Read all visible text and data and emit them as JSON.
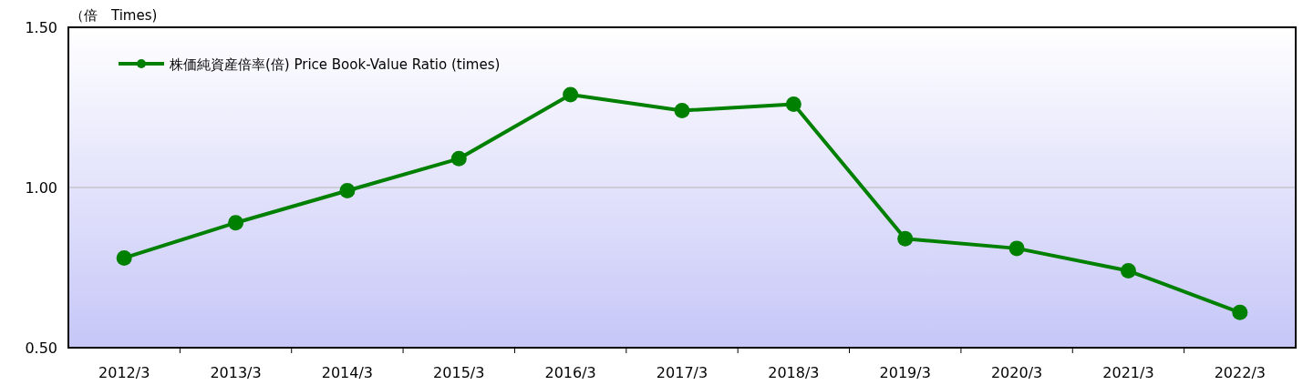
{
  "chart_data": {
    "type": "line",
    "ylabel": "（倍　Times)",
    "categories": [
      "2012/3",
      "2013/3",
      "2014/3",
      "2015/3",
      "2016/3",
      "2017/3",
      "2018/3",
      "2019/3",
      "2020/3",
      "2021/3",
      "2022/3"
    ],
    "series": [
      {
        "name": "株価純資産倍率(倍) Price Book-Value Ratio (times)",
        "color": "#008000",
        "values": [
          0.78,
          0.89,
          0.99,
          1.09,
          1.29,
          1.24,
          1.26,
          0.84,
          0.81,
          0.74,
          0.61
        ]
      }
    ],
    "ylim": [
      0.5,
      1.5
    ],
    "yticks": [
      {
        "value": 0.5,
        "label": "0.50"
      },
      {
        "value": 1,
        "label": "1.00"
      },
      {
        "value": 1.5,
        "label": "1.50"
      }
    ],
    "grid": "y",
    "legend": "top left",
    "marker": "circle",
    "line_style": "solid"
  }
}
